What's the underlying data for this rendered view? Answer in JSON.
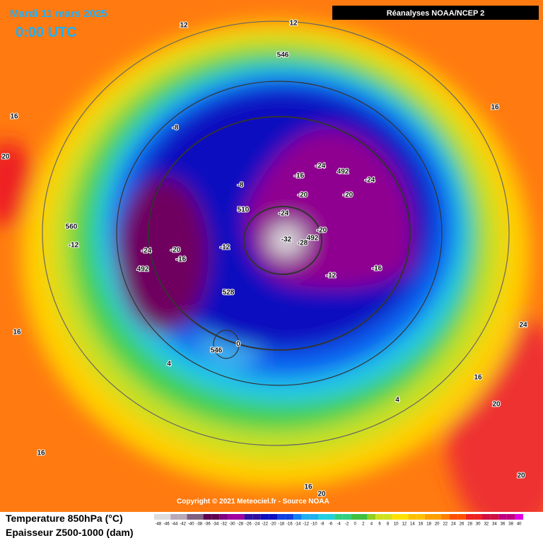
{
  "header": {
    "date": "Mardi 11 mars 2025",
    "time": "0:00 UTC",
    "source": "Réanalyses NOAA/NCEP 2"
  },
  "copyright": "Copyright © 2021 Meteociel.fr - Source NOAA",
  "legend": {
    "temperature": "Temperature 850hPa (°C)",
    "thickness": "Epaisseur Z500-1000 (dam)",
    "scale": [
      -48,
      -46,
      -44,
      -42,
      -40,
      -38,
      -36,
      -34,
      -32,
      -30,
      -28,
      -26,
      -24,
      -22,
      -20,
      -18,
      -16,
      -14,
      -12,
      -10,
      -8,
      -6,
      -4,
      -2,
      0,
      2,
      4,
      6,
      8,
      10,
      12,
      14,
      16,
      18,
      20,
      22,
      24,
      26,
      28,
      30,
      32,
      34,
      36,
      38,
      40
    ]
  },
  "map_labels": [
    12,
    12,
    546,
    16,
    16,
    20,
    -8,
    -24,
    492,
    -16,
    -24,
    -8,
    -20,
    -20,
    510,
    -24,
    560,
    -12,
    -24,
    -20,
    -12,
    -32,
    -28,
    -20,
    492,
    -16,
    492,
    -16,
    -12,
    528,
    16,
    24,
    546,
    0,
    4,
    16,
    4,
    20,
    16,
    16,
    20,
    20
  ]
}
